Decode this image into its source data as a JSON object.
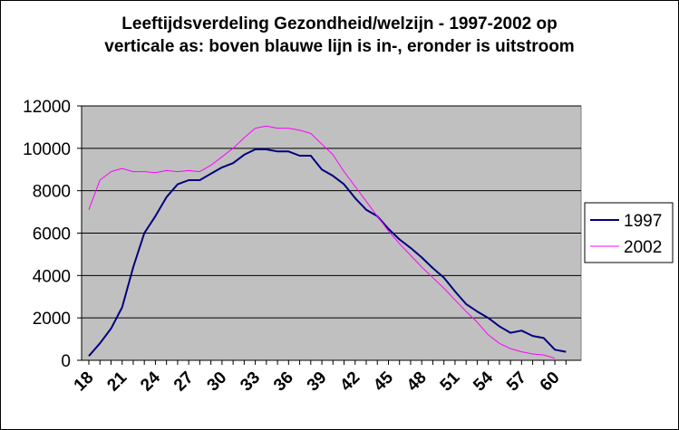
{
  "chart_data": {
    "type": "line",
    "title_line1": "Leeftijdsverdeling Gezondheid/welzijn - 1997-2002 op",
    "title_line2": "verticale as: boven blauwe lijn is in-, eronder is uitstroom",
    "xlabel": "",
    "ylabel": "",
    "ylim": [
      0,
      12000
    ],
    "yticks": [
      "0",
      "2000",
      "4000",
      "6000",
      "8000",
      "10000",
      "12000"
    ],
    "xticks": [
      "18",
      "21",
      "24",
      "27",
      "30",
      "33",
      "36",
      "39",
      "42",
      "45",
      "48",
      "51",
      "54",
      "57",
      "60"
    ],
    "x": [
      18,
      19,
      20,
      21,
      22,
      23,
      24,
      25,
      26,
      27,
      28,
      29,
      30,
      31,
      32,
      33,
      34,
      35,
      36,
      37,
      38,
      39,
      40,
      41,
      42,
      43,
      44,
      45,
      46,
      47,
      48,
      49,
      50,
      51,
      52,
      53,
      54,
      55,
      56,
      57,
      58,
      59,
      60,
      61
    ],
    "grid": true,
    "legend_position": "right",
    "series": [
      {
        "name": "1997",
        "color": "#000080",
        "values": [
          200,
          800,
          1500,
          2500,
          4400,
          6000,
          6800,
          7700,
          8300,
          8500,
          8500,
          8800,
          9100,
          9300,
          9700,
          9950,
          9950,
          9850,
          9850,
          9650,
          9650,
          9000,
          8700,
          8300,
          7650,
          7100,
          6800,
          6200,
          5700,
          5300,
          4850,
          4350,
          3900,
          3250,
          2650,
          2300,
          2000,
          1600,
          1300,
          1400,
          1150,
          1050,
          500,
          400
        ]
      },
      {
        "name": "2002",
        "color": "#ff00ff",
        "values": [
          7100,
          8500,
          8900,
          9050,
          8900,
          8900,
          8850,
          8950,
          8900,
          8950,
          8900,
          9200,
          9600,
          10000,
          10500,
          10950,
          11050,
          10950,
          10950,
          10850,
          10700,
          10200,
          9700,
          8900,
          8200,
          7500,
          6800,
          6100,
          5500,
          4950,
          4400,
          3900,
          3400,
          2850,
          2300,
          1800,
          1200,
          800,
          550,
          400,
          300,
          250,
          100,
          null
        ]
      }
    ]
  }
}
